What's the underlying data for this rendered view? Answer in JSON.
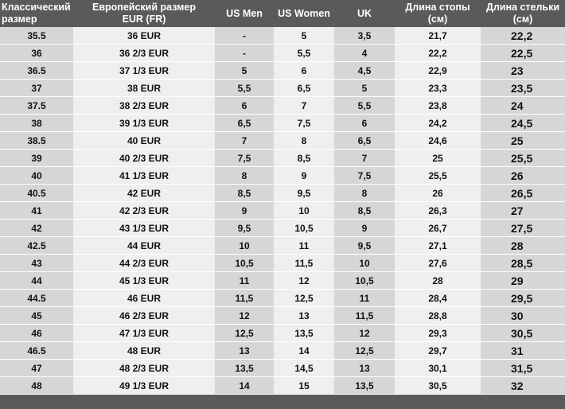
{
  "headers": [
    [
      "Классический",
      "размер"
    ],
    [
      "Европейский размер",
      "EUR (FR)"
    ],
    [
      "US Men",
      ""
    ],
    [
      "US Women",
      ""
    ],
    [
      "UK",
      ""
    ],
    [
      "Длина стопы",
      "(см)"
    ],
    [
      "Длина стельки",
      "(см)"
    ]
  ],
  "rows": [
    [
      "35.5",
      "36 EUR",
      "-",
      "5",
      "3,5",
      "21,7",
      "22,2"
    ],
    [
      "36",
      "36 2/3 EUR",
      "-",
      "5,5",
      "4",
      "22,2",
      "22,5"
    ],
    [
      "36.5",
      "37 1/3 EUR",
      "5",
      "6",
      "4,5",
      "22,9",
      "23"
    ],
    [
      "37",
      "38 EUR",
      "5,5",
      "6,5",
      "5",
      "23,3",
      "23,5"
    ],
    [
      "37.5",
      "38 2/3 EUR",
      "6",
      "7",
      "5,5",
      "23,8",
      "24"
    ],
    [
      "38",
      "39 1/3 EUR",
      "6,5",
      "7,5",
      "6",
      "24,2",
      "24,5"
    ],
    [
      "38.5",
      "40 EUR",
      "7",
      "8",
      "6,5",
      "24,6",
      "25"
    ],
    [
      "39",
      "40 2/3 EUR",
      "7,5",
      "8,5",
      "7",
      "25",
      "25,5"
    ],
    [
      "40",
      "41 1/3 EUR",
      "8",
      "9",
      "7,5",
      "25,5",
      "26"
    ],
    [
      "40.5",
      "42 EUR",
      "8,5",
      "9,5",
      "8",
      "26",
      "26,5"
    ],
    [
      "41",
      "42 2/3 EUR",
      "9",
      "10",
      "8,5",
      "26,3",
      "27"
    ],
    [
      "42",
      "43 1/3 EUR",
      "9,5",
      "10,5",
      "9",
      "26,7",
      "27,5"
    ],
    [
      "42.5",
      "44 EUR",
      "10",
      "11",
      "9,5",
      "27,1",
      "28"
    ],
    [
      "43",
      "44 2/3 EUR",
      "10,5",
      "11,5",
      "10",
      "27,6",
      "28,5"
    ],
    [
      "44",
      "45 1/3 EUR",
      "11",
      "12",
      "10,5",
      "28",
      "29"
    ],
    [
      "44.5",
      "46 EUR",
      "11,5",
      "12,5",
      "11",
      "28,4",
      "29,5"
    ],
    [
      "45",
      "46 2/3 EUR",
      "12",
      "13",
      "11,5",
      "28,8",
      "30"
    ],
    [
      "46",
      "47 1/3 EUR",
      "12,5",
      "13,5",
      "12",
      "29,3",
      "30,5"
    ],
    [
      "46.5",
      "48 EUR",
      "13",
      "14",
      "12,5",
      "29,7",
      "31"
    ],
    [
      "47",
      "48 2/3 EUR",
      "13,5",
      "14,5",
      "13",
      "30,1",
      "31,5"
    ],
    [
      "48",
      "49 1/3 EUR",
      "14",
      "15",
      "13,5",
      "30,5",
      "32"
    ]
  ]
}
